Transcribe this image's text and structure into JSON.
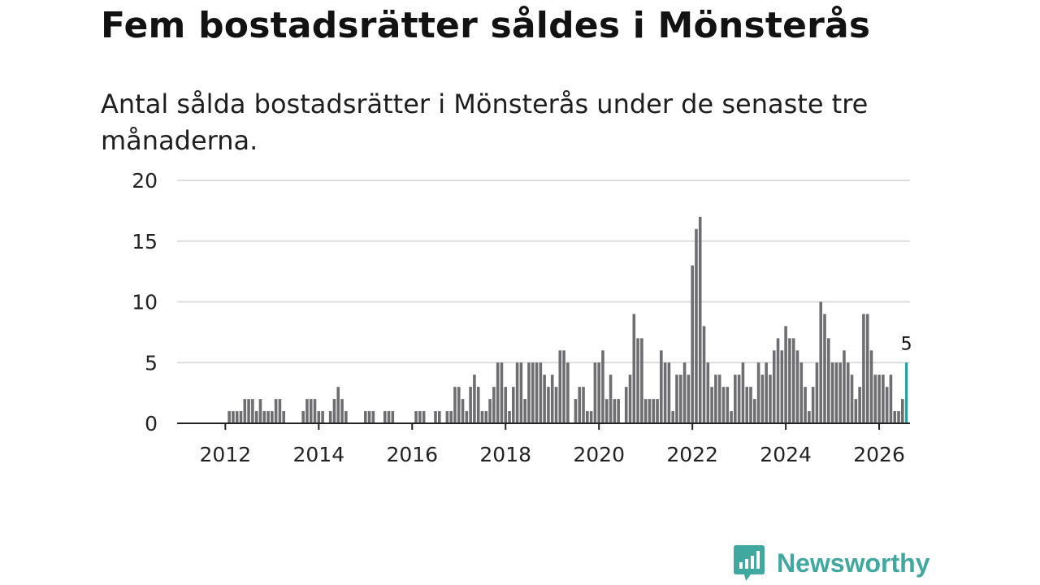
{
  "header": {
    "title": "Fem bostadsrätter såldes i Mönsterås",
    "subtitle": "Antal sålda bostadsrätter i Mönsterås under de senaste tre månaderna."
  },
  "brand": {
    "name": "Newsworthy",
    "icon": "newsworthy-logo-icon",
    "color": "#3fa89f"
  },
  "colors": {
    "bar": "#6e6e72",
    "highlight": "#1a9e95",
    "grid": "#dddddd",
    "axis": "#222222"
  },
  "chart_data": {
    "type": "bar",
    "title": "Fem bostadsrätter såldes i Mönsterås",
    "subtitle": "Antal sålda bostadsrätter i Mönsterås under de senaste tre månaderna.",
    "xlabel": "",
    "ylabel": "",
    "ylim": [
      0,
      20
    ],
    "yticks": [
      0,
      5,
      10,
      15,
      20
    ],
    "xticks": [
      "2012",
      "2014",
      "2016",
      "2018",
      "2020",
      "2022",
      "2024",
      "2026"
    ],
    "grid": true,
    "x_start": "2010-10",
    "interval": "month",
    "highlight_label": "5",
    "values": [
      0,
      0,
      0,
      0,
      0,
      0,
      0,
      0,
      0,
      0,
      0,
      0,
      0,
      0,
      0,
      0,
      1,
      1,
      1,
      1,
      2,
      2,
      2,
      1,
      2,
      1,
      1,
      1,
      2,
      2,
      1,
      0,
      0,
      0,
      0,
      1,
      2,
      2,
      2,
      1,
      1,
      0,
      1,
      2,
      3,
      2,
      1,
      0,
      0,
      0,
      0,
      1,
      1,
      1,
      0,
      0,
      1,
      1,
      1,
      0,
      0,
      0,
      0,
      0,
      1,
      1,
      1,
      0,
      0,
      1,
      1,
      0,
      1,
      1,
      3,
      3,
      2,
      1,
      3,
      4,
      3,
      1,
      1,
      2,
      3,
      5,
      5,
      3,
      1,
      3,
      5,
      5,
      2,
      5,
      5,
      5,
      5,
      4,
      3,
      4,
      3,
      6,
      6,
      5,
      0,
      2,
      3,
      3,
      1,
      1,
      5,
      5,
      6,
      2,
      4,
      2,
      2,
      0,
      3,
      4,
      9,
      7,
      7,
      2,
      2,
      2,
      2,
      6,
      5,
      5,
      1,
      4,
      4,
      5,
      4,
      13,
      16,
      17,
      8,
      5,
      3,
      4,
      4,
      3,
      3,
      1,
      4,
      4,
      5,
      3,
      3,
      2,
      5,
      4,
      5,
      4,
      6,
      7,
      6,
      8,
      7,
      7,
      6,
      5,
      3,
      1,
      3,
      5,
      10,
      9,
      7,
      5,
      5,
      5,
      6,
      5,
      4,
      2,
      3,
      9,
      9,
      6,
      4,
      4,
      4,
      3,
      4,
      1,
      1,
      2,
      5
    ]
  }
}
